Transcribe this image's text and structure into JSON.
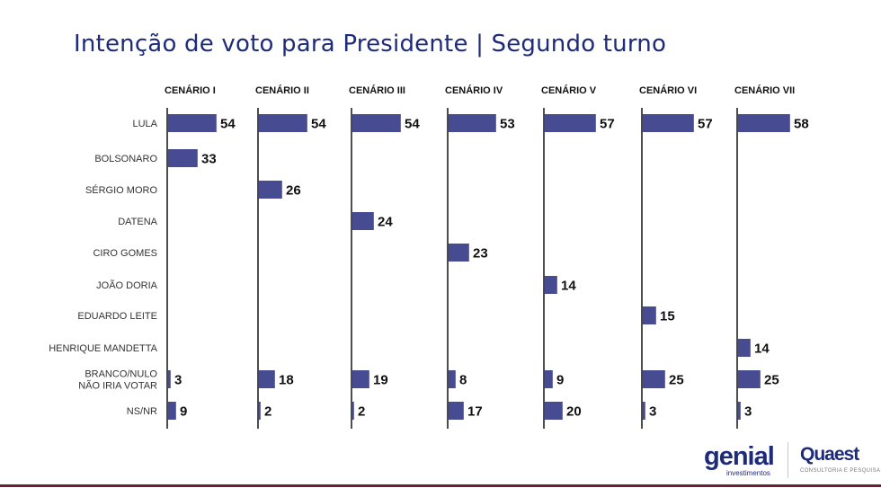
{
  "title": "Intenção de voto para Presidente | Segundo turno",
  "colors": {
    "bar": "#474b91",
    "title": "#1e2b7a",
    "axis": "#222222"
  },
  "logos": {
    "genial": {
      "name": "genial",
      "subtitle": "investimentos"
    },
    "quaest": {
      "name": "Quaest",
      "subtitle": "CONSULTORIA E PESQUISA"
    }
  },
  "chart_data": {
    "type": "bar",
    "orientation": "horizontal",
    "title": "Intenção de voto para Presidente | Segundo turno",
    "categories": [
      "LULA",
      "BOLSONARO",
      "SÉRGIO MORO",
      "DATENA",
      "CIRO GOMES",
      "JOÃO DORIA",
      "EDUARDO LEITE",
      "HENRIQUE MANDETTA",
      "BRANCO/NULO\nNÃO IRIA VOTAR",
      "NS/NR"
    ],
    "unit": "%",
    "grid": false,
    "legend": "none",
    "series": [
      {
        "name": "CENÁRIO I",
        "values": [
          54,
          33,
          null,
          null,
          null,
          null,
          null,
          null,
          3,
          9
        ]
      },
      {
        "name": "CENÁRIO II",
        "values": [
          54,
          null,
          26,
          null,
          null,
          null,
          null,
          null,
          18,
          2
        ]
      },
      {
        "name": "CENÁRIO III",
        "values": [
          54,
          null,
          null,
          24,
          null,
          null,
          null,
          null,
          19,
          2
        ]
      },
      {
        "name": "CENÁRIO IV",
        "values": [
          53,
          null,
          null,
          null,
          23,
          null,
          null,
          null,
          8,
          17
        ]
      },
      {
        "name": "CENÁRIO V",
        "values": [
          57,
          null,
          null,
          null,
          null,
          14,
          null,
          null,
          9,
          20
        ]
      },
      {
        "name": "CENÁRIO VI",
        "values": [
          57,
          null,
          null,
          null,
          null,
          null,
          15,
          null,
          25,
          3
        ]
      },
      {
        "name": "CENÁRIO VII",
        "values": [
          58,
          null,
          null,
          null,
          null,
          null,
          null,
          14,
          25,
          3
        ]
      }
    ]
  }
}
